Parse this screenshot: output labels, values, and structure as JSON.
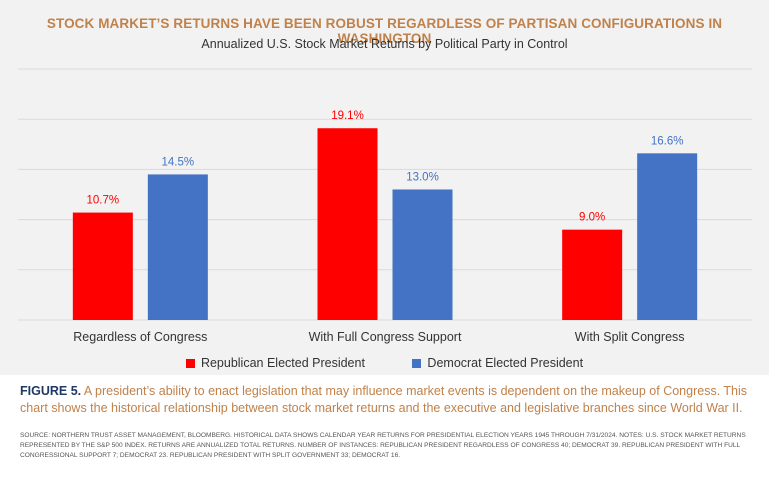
{
  "chart_data": {
    "type": "bar",
    "title": "STOCK MARKET’S RETURNS HAVE BEEN ROBUST REGARDLESS OF PARTISAN CONFIGURATIONS IN WASHINGTON",
    "subtitle": "Annualized U.S. Stock Market Returns by Political Party in Control",
    "categories": [
      "Regardless of Congress",
      "With Full Congress Support",
      "With Split Congress"
    ],
    "series": [
      {
        "name": "Republican Elected President",
        "values": [
          10.7,
          19.1,
          9.0
        ],
        "labels": [
          "10.7%",
          "19.1%",
          "9.0%"
        ],
        "color": "#ff0000",
        "label_color": "#ff0000"
      },
      {
        "name": "Democrat Elected President",
        "values": [
          14.5,
          13.0,
          16.6
        ],
        "labels": [
          "14.5%",
          "13.0%",
          "16.6%"
        ],
        "color": "#4472c4",
        "label_color": "#4472c4"
      }
    ],
    "ylim": [
      0,
      25
    ],
    "grid": true,
    "legend_position": "bottom",
    "xlabel": "",
    "ylabel": ""
  },
  "caption": {
    "figure": "FIGURE 5.",
    "text": "A president’s ability to enact legislation that may influence market events is dependent on the makeup of Congress. This chart shows the historical relationship between stock market returns and the executive and legislative branches since World War II."
  },
  "source": "SOURCE: NORTHERN TRUST ASSET MANAGEMENT, BLOOMBERG. HISTORICAL DATA SHOWS CALENDAR YEAR RETURNS FOR PRESIDENTIAL ELECTION YEARS 1945 THROUGH 7/31/2024. NOTES: U.S. STOCK MARKET RETURNS REPRESENTED BY THE S&P 500 INDEX. RETURNS ARE ANNUALIZED TOTAL RETURNS. NUMBER OF INSTANCES: REPUBLICAN PRESIDENT REGARDLESS OF CONGRESS 40; DEMOCRAT 39. REPUBLICAN PRESIDENT WITH FULL CONGRESSIONAL SUPPORT 7; DEMOCRAT 23. REPUBLICAN PRESIDENT WITH SPLIT GOVERNMENT 33; DEMOCRAT 16."
}
